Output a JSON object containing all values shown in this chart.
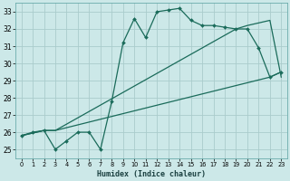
{
  "xlabel": "Humidex (Indice chaleur)",
  "bg_color": "#cce8e8",
  "grid_color": "#aacccc",
  "line_color": "#1a6b5a",
  "xlim": [
    -0.5,
    23.5
  ],
  "ylim": [
    24.5,
    33.5
  ],
  "xticks": [
    0,
    1,
    2,
    3,
    4,
    5,
    6,
    7,
    8,
    9,
    10,
    11,
    12,
    13,
    14,
    15,
    16,
    17,
    18,
    19,
    20,
    21,
    22,
    23
  ],
  "yticks": [
    25,
    26,
    27,
    28,
    29,
    30,
    31,
    32,
    33
  ],
  "jagged_x": [
    0,
    1,
    2,
    3,
    4,
    5,
    6,
    7,
    8,
    9,
    10,
    11,
    12,
    13,
    14,
    15,
    16,
    17,
    18,
    19,
    20,
    21,
    22,
    23
  ],
  "jagged_y": [
    25.8,
    26.0,
    26.1,
    25.0,
    25.5,
    26.0,
    26.0,
    25.0,
    27.8,
    31.2,
    32.6,
    31.5,
    33.0,
    33.1,
    33.2,
    32.5,
    32.2,
    32.2,
    32.1,
    32.0,
    32.0,
    30.9,
    29.2,
    29.5
  ],
  "line_upper_x": [
    0,
    2,
    3,
    19,
    20,
    22,
    23
  ],
  "line_upper_y": [
    25.8,
    26.1,
    26.1,
    32.0,
    32.2,
    32.5,
    29.2
  ],
  "line_lower_x": [
    0,
    2,
    3,
    22,
    23
  ],
  "line_lower_y": [
    25.8,
    26.1,
    26.1,
    29.2,
    29.5
  ]
}
